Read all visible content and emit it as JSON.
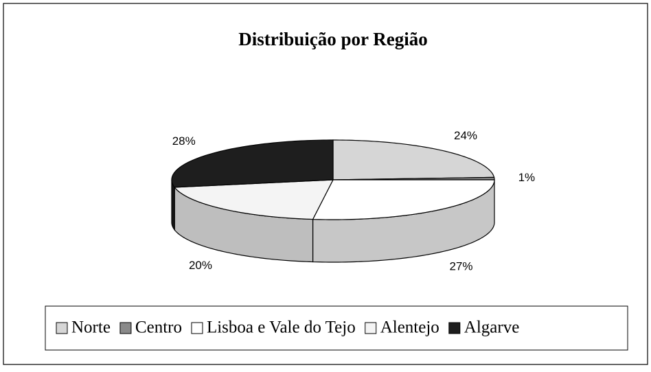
{
  "chart_data": {
    "type": "pie3d",
    "title": "Distribuição por Região",
    "categories": [
      "Norte",
      "Centro",
      "Lisboa e Vale do Tejo",
      "Alentejo",
      "Algarve"
    ],
    "values": [
      24,
      1,
      27,
      20,
      28
    ],
    "value_labels": [
      "24%",
      "1%",
      "27%",
      "20%",
      "28%"
    ],
    "colors": [
      "#d6d6d6",
      "#8a8a8a",
      "#ffffff",
      "#f4f4f4",
      "#1e1e1e"
    ],
    "legend": "bottom"
  }
}
